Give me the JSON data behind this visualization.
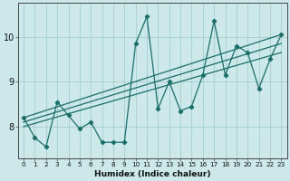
{
  "xlabel": "Humidex (Indice chaleur)",
  "ylabel": "",
  "bg_color": "#cce8e8",
  "line_color": "#1a6e6a",
  "grid_color": "#9ec8c8",
  "xlim": [
    -0.5,
    23.5
  ],
  "ylim": [
    7.3,
    10.75
  ],
  "xticks": [
    0,
    1,
    2,
    3,
    4,
    5,
    6,
    7,
    8,
    9,
    10,
    11,
    12,
    13,
    14,
    15,
    16,
    17,
    18,
    19,
    20,
    21,
    22,
    23
  ],
  "yticks": [
    8,
    9,
    10
  ],
  "series1_x": [
    0,
    1,
    2,
    3,
    4,
    5,
    6,
    7,
    8,
    9,
    10,
    11,
    12,
    13,
    14,
    15,
    16,
    17,
    18,
    19,
    20,
    21,
    22,
    23
  ],
  "series1_y": [
    8.2,
    7.75,
    7.55,
    8.55,
    8.25,
    7.95,
    8.1,
    7.65,
    7.65,
    7.65,
    9.85,
    10.45,
    8.4,
    9.0,
    8.35,
    8.45,
    9.15,
    10.35,
    9.15,
    9.8,
    9.65,
    8.85,
    9.5,
    10.05
  ],
  "trend1_x": [
    0,
    23
  ],
  "trend1_y": [
    8.1,
    9.85
  ],
  "trend2_x": [
    0,
    23
  ],
  "trend2_y": [
    8.2,
    10.05
  ],
  "trend3_x": [
    0,
    23
  ],
  "trend3_y": [
    8.0,
    9.65
  ]
}
